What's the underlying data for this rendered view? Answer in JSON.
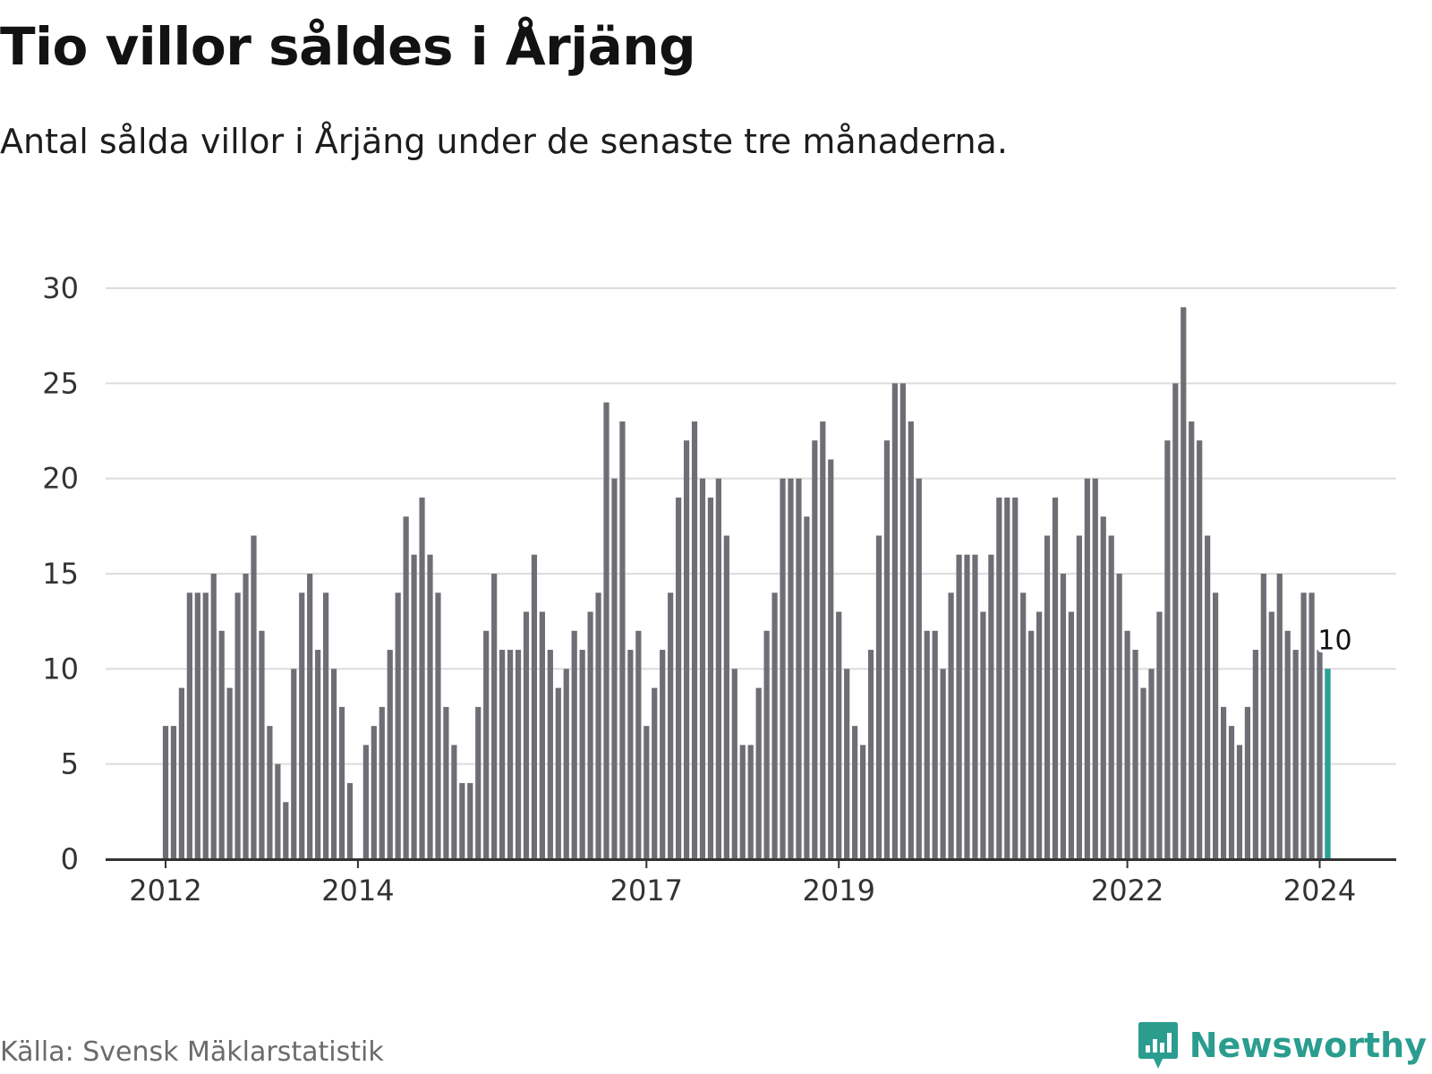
{
  "header": {
    "title": "Tio villor såldes i Årjäng",
    "subtitle": "Antal sålda villor i Årjäng under de senaste tre månaderna."
  },
  "footer": {
    "source": "Källa: Svensk Mäklarstatistik",
    "brand": "Newsworthy",
    "brand_icon": "bar-chart-speech-bubble-icon"
  },
  "colors": {
    "bar": "#6e6e75",
    "highlight": "#2aa197",
    "grid": "#dcdcdc",
    "axis": "#333333",
    "brand": "#2a9d8f"
  },
  "chart_data": {
    "type": "bar",
    "title": "Tio villor såldes i Årjäng",
    "subtitle": "Antal sålda villor i Årjäng under de senaste tre månaderna.",
    "xlabel": "",
    "ylabel": "",
    "ylim": [
      0,
      30
    ],
    "yticks": [
      0,
      5,
      10,
      15,
      20,
      25,
      30
    ],
    "grid": true,
    "frequency": "monthly, rolling three-month total",
    "start": "2012-01",
    "xtick_labels": [
      {
        "label": "2012",
        "index": 0
      },
      {
        "label": "2014",
        "index": 24
      },
      {
        "label": "2017",
        "index": 60
      },
      {
        "label": "2019",
        "index": 84
      },
      {
        "label": "2022",
        "index": 120
      },
      {
        "label": "2024",
        "index": 144
      }
    ],
    "values": [
      7,
      7,
      9,
      14,
      14,
      14,
      15,
      12,
      9,
      14,
      15,
      17,
      12,
      7,
      5,
      3,
      10,
      14,
      15,
      11,
      14,
      10,
      8,
      4,
      0,
      6,
      7,
      8,
      11,
      14,
      18,
      16,
      19,
      16,
      14,
      8,
      6,
      4,
      4,
      8,
      12,
      15,
      11,
      11,
      11,
      13,
      16,
      13,
      11,
      9,
      10,
      12,
      11,
      13,
      14,
      24,
      20,
      23,
      11,
      12,
      7,
      9,
      11,
      14,
      19,
      22,
      23,
      20,
      19,
      20,
      17,
      10,
      6,
      6,
      9,
      12,
      14,
      20,
      20,
      20,
      18,
      22,
      23,
      21,
      13,
      10,
      7,
      6,
      11,
      17,
      22,
      25,
      25,
      23,
      20,
      12,
      12,
      10,
      14,
      16,
      16,
      16,
      13,
      16,
      19,
      19,
      19,
      14,
      12,
      13,
      17,
      19,
      15,
      13,
      17,
      20,
      20,
      18,
      17,
      15,
      12,
      11,
      9,
      10,
      13,
      22,
      25,
      29,
      23,
      22,
      17,
      14,
      8,
      7,
      6,
      8,
      11,
      15,
      13,
      15,
      12,
      11,
      14,
      14,
      11,
      10
    ],
    "highlight": {
      "index": 145,
      "value": 10,
      "label": "10"
    }
  }
}
